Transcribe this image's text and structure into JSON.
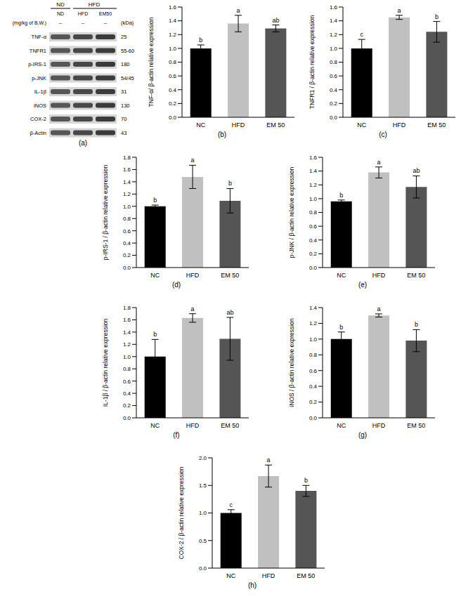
{
  "blot": {
    "caption": "(a)",
    "groups": [
      "ND",
      "HFD"
    ],
    "lanes": [
      "ND",
      "HFD",
      "EM50"
    ],
    "dose_label": "(mg/kg of B.W.)",
    "doses": [
      "–",
      "–",
      "–"
    ],
    "unit_label": "(kDa)",
    "proteins": [
      {
        "name": "TNF-α",
        "kda": 25
      },
      {
        "name": "TNFR1",
        "kda": "55-60"
      },
      {
        "name": "p-IRS-1",
        "kda": 180
      },
      {
        "name": "p-JNK",
        "kda": "54/45"
      },
      {
        "name": "IL-1β",
        "kda": 31
      },
      {
        "name": "iNOS",
        "kda": 130
      },
      {
        "name": "COX-2",
        "kda": 70
      },
      {
        "name": "β-Actin",
        "kda": 43
      }
    ]
  },
  "chart_data": [
    {
      "type": "bar",
      "caption": "(b)",
      "y_label": "TNF-α/ β-actin relative expression",
      "categories": [
        "NC",
        "HFD",
        "EM 50"
      ],
      "values": [
        1.0,
        1.36,
        1.29
      ],
      "errors": [
        0.05,
        0.12,
        0.05
      ],
      "annotations": [
        "b",
        "a",
        "ab"
      ],
      "colors": [
        "#000000",
        "#c0c0c0",
        "#555555"
      ],
      "ylim": [
        0,
        1.6
      ],
      "yticks": [
        {
          "value": 0,
          "label": "0.0"
        },
        {
          "value": 0.2,
          "label": "0.2"
        },
        {
          "value": 0.4,
          "label": "0.4"
        },
        {
          "value": 0.6,
          "label": "0.6"
        },
        {
          "value": 0.8,
          "label": "0.8"
        },
        {
          "value": 1,
          "label": "1.0"
        },
        {
          "value": 1.2,
          "label": "1.2"
        },
        {
          "value": 1.4,
          "label": "1.4"
        },
        {
          "value": 1.6,
          "label": "1.6"
        }
      ]
    },
    {
      "type": "bar",
      "caption": "(c)",
      "y_label": "TNFR1 / β-actin relative expression",
      "categories": [
        "NC",
        "HFD",
        "EM 50"
      ],
      "values": [
        1.0,
        1.45,
        1.24
      ],
      "errors": [
        0.13,
        0.03,
        0.15
      ],
      "annotations": [
        "c",
        "a",
        "b"
      ],
      "colors": [
        "#000000",
        "#c0c0c0",
        "#555555"
      ],
      "ylim": [
        0,
        1.6
      ],
      "yticks": [
        {
          "value": 0,
          "label": "0.0"
        },
        {
          "value": 0.2,
          "label": "0.2"
        },
        {
          "value": 0.4,
          "label": "0.4"
        },
        {
          "value": 0.6,
          "label": "0.6"
        },
        {
          "value": 0.8,
          "label": "0.8"
        },
        {
          "value": 1,
          "label": "1.0"
        },
        {
          "value": 1.2,
          "label": "1.2"
        },
        {
          "value": 1.4,
          "label": "1.4"
        },
        {
          "value": 1.6,
          "label": "1.6"
        }
      ]
    },
    {
      "type": "bar",
      "caption": "(d)",
      "y_label": "p-IRS-1 / β-actin relative expression",
      "categories": [
        "NC",
        "HFD",
        "EM 50"
      ],
      "values": [
        1.0,
        1.48,
        1.09
      ],
      "errors": [
        0.02,
        0.19,
        0.2
      ],
      "annotations": [
        "b",
        "a",
        "b"
      ],
      "colors": [
        "#000000",
        "#c0c0c0",
        "#555555"
      ],
      "ylim": [
        0,
        1.8
      ],
      "yticks": [
        {
          "value": 0,
          "label": "0.0"
        },
        {
          "value": 0.2,
          "label": "0.2"
        },
        {
          "value": 0.4,
          "label": "0.4"
        },
        {
          "value": 0.6,
          "label": "0.6"
        },
        {
          "value": 0.8,
          "label": "0.8"
        },
        {
          "value": 1,
          "label": "1.0"
        },
        {
          "value": 1.2,
          "label": "1.2"
        },
        {
          "value": 1.4,
          "label": "1.4"
        },
        {
          "value": 1.6,
          "label": "1.6"
        },
        {
          "value": 1.8,
          "label": "1.8"
        }
      ]
    },
    {
      "type": "bar",
      "caption": "(e)",
      "y_label": "p-JNK / β-actin relative expression",
      "categories": [
        "NC",
        "HFD",
        "EM 50"
      ],
      "values": [
        0.96,
        1.38,
        1.17
      ],
      "errors": [
        0.02,
        0.08,
        0.16
      ],
      "annotations": [
        "b",
        "a",
        "ab"
      ],
      "colors": [
        "#000000",
        "#c0c0c0",
        "#555555"
      ],
      "ylim": [
        0,
        1.6
      ],
      "yticks": [
        {
          "value": 0,
          "label": "0.0"
        },
        {
          "value": 0.2,
          "label": "0.2"
        },
        {
          "value": 0.4,
          "label": "0.4"
        },
        {
          "value": 0.6,
          "label": "0.6"
        },
        {
          "value": 0.8,
          "label": "0.8"
        },
        {
          "value": 1,
          "label": "1.0"
        },
        {
          "value": 1.2,
          "label": "1.2"
        },
        {
          "value": 1.4,
          "label": "1.4"
        },
        {
          "value": 1.6,
          "label": "1.6"
        }
      ]
    },
    {
      "type": "bar",
      "caption": "(f)",
      "y_label": "IL-1β / β-actin relative expression",
      "categories": [
        "NC",
        "HFD",
        "EM 50"
      ],
      "values": [
        1.0,
        1.63,
        1.29
      ],
      "errors": [
        0.28,
        0.07,
        0.35
      ],
      "annotations": [
        "b",
        "a",
        "ab"
      ],
      "colors": [
        "#000000",
        "#c0c0c0",
        "#555555"
      ],
      "ylim": [
        0,
        1.8
      ],
      "yticks": [
        {
          "value": 0,
          "label": "0.0"
        },
        {
          "value": 0.2,
          "label": "0.2"
        },
        {
          "value": 0.4,
          "label": "0.4"
        },
        {
          "value": 0.6,
          "label": "0.6"
        },
        {
          "value": 0.8,
          "label": "0.8"
        },
        {
          "value": 1,
          "label": "1.0"
        },
        {
          "value": 1.2,
          "label": "1.2"
        },
        {
          "value": 1.4,
          "label": "1.4"
        },
        {
          "value": 1.6,
          "label": "1.6"
        },
        {
          "value": 1.8,
          "label": "1.8"
        }
      ]
    },
    {
      "type": "bar",
      "caption": "(g)",
      "y_label": "iNOS / β-actin relative expression",
      "categories": [
        "NC",
        "HFD",
        "EM 50"
      ],
      "values": [
        1.0,
        1.3,
        0.98
      ],
      "errors": [
        0.09,
        0.02,
        0.14
      ],
      "annotations": [
        "b",
        "a",
        "b"
      ],
      "colors": [
        "#000000",
        "#c0c0c0",
        "#555555"
      ],
      "ylim": [
        0,
        1.4
      ],
      "yticks": [
        {
          "value": 0,
          "label": "0.0"
        },
        {
          "value": 0.2,
          "label": "0.2"
        },
        {
          "value": 0.4,
          "label": "0.4"
        },
        {
          "value": 0.6,
          "label": "0.6"
        },
        {
          "value": 0.8,
          "label": "0.8"
        },
        {
          "value": 1,
          "label": "1.0"
        },
        {
          "value": 1.2,
          "label": "1.2"
        },
        {
          "value": 1.4,
          "label": "1.4"
        }
      ]
    },
    {
      "type": "bar",
      "caption": "(h)",
      "y_label": "COX-2 / β-actin relative expression",
      "categories": [
        "NC",
        "HFD",
        "EM 50"
      ],
      "values": [
        1.0,
        1.67,
        1.4
      ],
      "errors": [
        0.06,
        0.2,
        0.1
      ],
      "annotations": [
        "c",
        "a",
        "b"
      ],
      "colors": [
        "#000000",
        "#c0c0c0",
        "#555555"
      ],
      "ylim": [
        0,
        2.0
      ],
      "yticks": [
        {
          "value": 0,
          "label": "0.0"
        },
        {
          "value": 0.5,
          "label": "0.5"
        },
        {
          "value": 1,
          "label": "1.0"
        },
        {
          "value": 1.5,
          "label": "1.5"
        },
        {
          "value": 2,
          "label": "2.0"
        }
      ]
    }
  ]
}
